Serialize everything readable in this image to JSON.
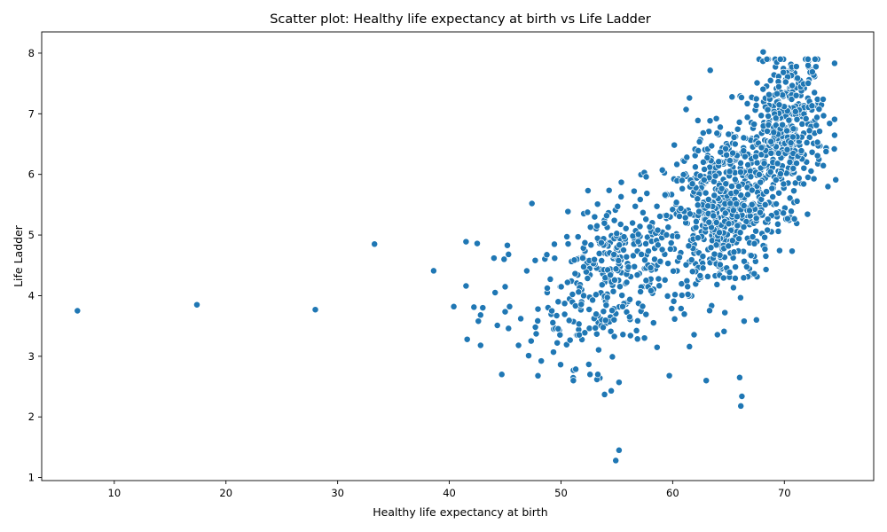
{
  "chart_data": {
    "type": "scatter",
    "title": "Scatter plot: Healthy life expectancy at birth vs Life Ladder",
    "xlabel": "Healthy life expectancy at birth",
    "ylabel": "Life Ladder",
    "xlim": [
      3.5,
      78.0
    ],
    "ylim": [
      0.95,
      8.35
    ],
    "xticks": [
      10,
      20,
      30,
      40,
      50,
      60,
      70
    ],
    "yticks": [
      1,
      2,
      3,
      4,
      5,
      6,
      7,
      8
    ],
    "grid": false,
    "legend": "none",
    "color": "#1f77b4",
    "outliers": [
      [
        6.7,
        3.75
      ],
      [
        17.4,
        3.85
      ],
      [
        28.0,
        3.77
      ],
      [
        33.3,
        4.85
      ],
      [
        38.6,
        4.41
      ],
      [
        40.4,
        3.82
      ],
      [
        41.5,
        4.89
      ],
      [
        41.5,
        4.16
      ],
      [
        41.6,
        3.28
      ],
      [
        42.2,
        3.81
      ],
      [
        42.5,
        4.86
      ],
      [
        42.6,
        3.58
      ],
      [
        42.8,
        3.68
      ],
      [
        42.8,
        3.18
      ],
      [
        43.0,
        3.8
      ],
      [
        44.0,
        4.62
      ],
      [
        44.1,
        4.05
      ],
      [
        44.3,
        3.51
      ],
      [
        44.7,
        2.7
      ],
      [
        44.9,
        4.6
      ],
      [
        45.2,
        4.83
      ],
      [
        45.3,
        3.46
      ],
      [
        45.4,
        3.82
      ],
      [
        45.3,
        4.68
      ],
      [
        46.2,
        3.18
      ],
      [
        46.4,
        3.62
      ],
      [
        47.1,
        3.01
      ],
      [
        47.4,
        5.52
      ],
      [
        52.6,
        2.7
      ],
      [
        53.3,
        2.7
      ],
      [
        53.9,
        2.37
      ],
      [
        54.5,
        2.43
      ],
      [
        55.2,
        2.57
      ],
      [
        55.2,
        1.45
      ],
      [
        54.9,
        1.28
      ],
      [
        59.7,
        2.68
      ],
      [
        61.5,
        3.16
      ],
      [
        64.6,
        3.41
      ],
      [
        66.0,
        2.65
      ],
      [
        66.2,
        2.34
      ],
      [
        66.1,
        2.18
      ],
      [
        66.4,
        3.58
      ],
      [
        67.5,
        3.6
      ],
      [
        68.1,
        8.02
      ],
      [
        61.5,
        7.26
      ],
      [
        61.2,
        7.07
      ],
      [
        72.5,
        7.69
      ],
      [
        73.9,
        5.8
      ],
      [
        74.6,
        5.91
      ]
    ],
    "clusters": [
      {
        "n": 340,
        "x_center": 54.5,
        "y_center": 4.35,
        "x_sd": 3.3,
        "y_sd": 0.62
      },
      {
        "n": 560,
        "x_center": 64.5,
        "y_center": 5.45,
        "x_sd": 2.6,
        "y_sd": 0.72
      },
      {
        "n": 380,
        "x_center": 70.3,
        "y_center": 6.75,
        "x_sd": 1.6,
        "y_sd": 0.62
      }
    ]
  }
}
